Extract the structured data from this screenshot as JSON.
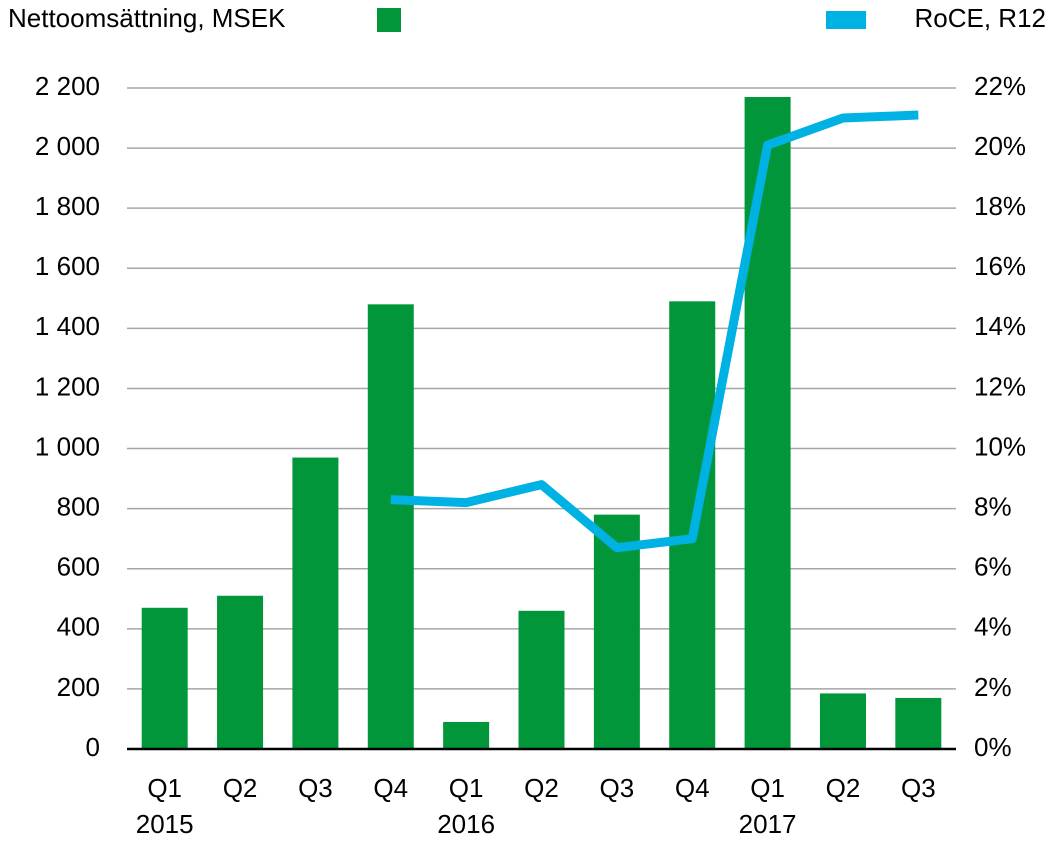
{
  "chart_data": {
    "type": "bar",
    "categories": [
      "Q1",
      "Q2",
      "Q3",
      "Q4",
      "Q1",
      "Q2",
      "Q3",
      "Q4",
      "Q1",
      "Q2",
      "Q3"
    ],
    "years": [
      "2015",
      null,
      null,
      null,
      "2016",
      null,
      null,
      null,
      "2017",
      null,
      null
    ],
    "series": [
      {
        "name": "Nettoomsättning, MSEK",
        "type": "bar",
        "color": "#009639",
        "values": [
          470,
          510,
          970,
          1480,
          90,
          460,
          780,
          1490,
          2170,
          185,
          170
        ]
      },
      {
        "name": "RoCE, R12",
        "type": "line",
        "axis": "y2",
        "color": "#00b2e3",
        "values": [
          null,
          null,
          null,
          8.3,
          8.2,
          8.8,
          6.7,
          7.0,
          20.1,
          21.0,
          21.1
        ]
      }
    ],
    "ylim": [
      0,
      2200
    ],
    "yticks": [
      0,
      200,
      400,
      600,
      800,
      {
        "value": 1000,
        "label": "1 000"
      },
      {
        "value": 1200,
        "label": "1 200"
      },
      {
        "value": 1400,
        "label": "1 400"
      },
      {
        "value": 1600,
        "label": "1 600"
      },
      {
        "value": 1800,
        "label": "1 800"
      },
      {
        "value": 2000,
        "label": "2 000"
      },
      {
        "value": 2200,
        "label": "2 200"
      }
    ],
    "y2lim": [
      0,
      22
    ],
    "y2ticks": [
      {
        "value": 0,
        "label": "0%"
      },
      {
        "value": 2,
        "label": "2%"
      },
      {
        "value": 4,
        "label": "4%"
      },
      {
        "value": 6,
        "label": "6%"
      },
      {
        "value": 8,
        "label": "8%"
      },
      {
        "value": 10,
        "label": "10%"
      },
      {
        "value": 12,
        "label": "12%"
      },
      {
        "value": 14,
        "label": "14%"
      },
      {
        "value": 16,
        "label": "16%"
      },
      {
        "value": 18,
        "label": "18%"
      },
      {
        "value": 20,
        "label": "20%"
      },
      {
        "value": 22,
        "label": "22%"
      }
    ],
    "grid": true
  }
}
